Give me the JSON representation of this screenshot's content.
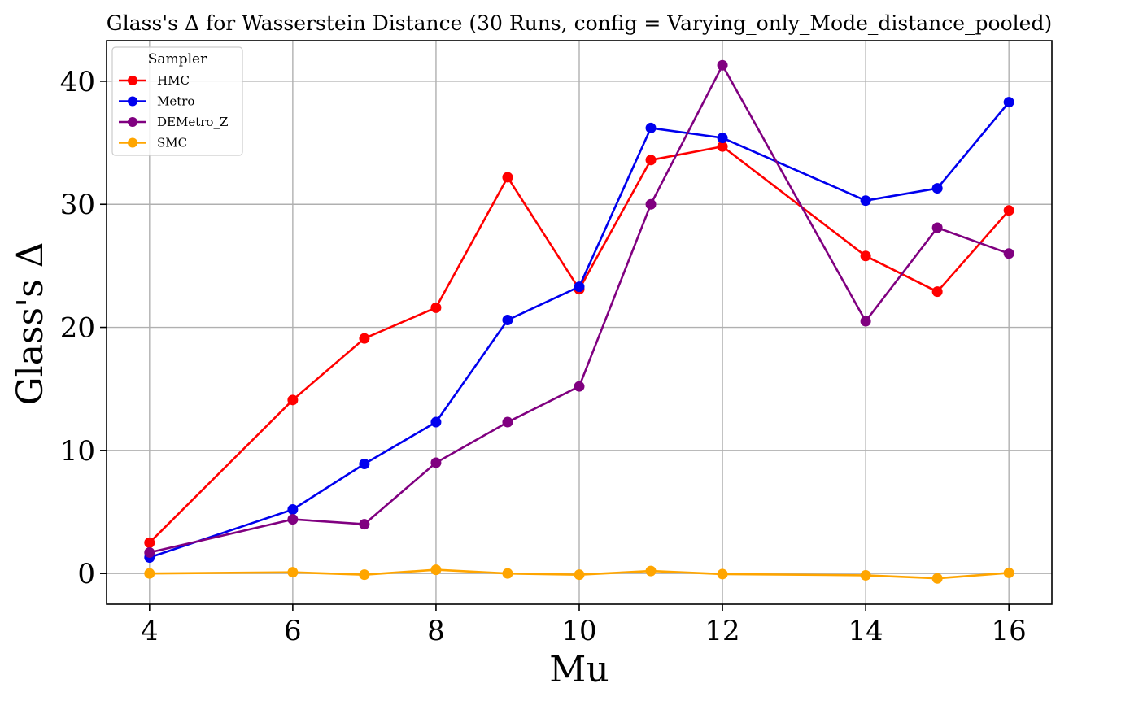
{
  "chart_data": {
    "type": "line",
    "title": "Glass's Δ for Wasserstein Distance (30 Runs, config = Varying_only_Mode_distance_pooled)",
    "xlabel": "Mu",
    "ylabel": "Glass's Δ",
    "xlim": [
      3.4,
      16.6
    ],
    "ylim": [
      -2.5,
      43.3
    ],
    "x_ticks": [
      4,
      6,
      8,
      10,
      12,
      14,
      16
    ],
    "y_ticks": [
      0,
      10,
      20,
      30,
      40
    ],
    "grid": true,
    "legend": {
      "title": "Sampler",
      "position": "top-left"
    },
    "x": [
      4,
      6,
      7,
      8,
      9,
      10,
      11,
      12,
      14,
      15,
      16
    ],
    "series": [
      {
        "name": "HMC",
        "color": "#ff0000",
        "values": [
          2.5,
          14.1,
          19.1,
          21.6,
          32.2,
          23.1,
          33.6,
          34.7,
          25.8,
          22.9,
          29.5
        ]
      },
      {
        "name": "Metro",
        "color": "#0000ee",
        "values": [
          1.3,
          5.2,
          8.9,
          12.3,
          20.6,
          23.3,
          36.2,
          35.4,
          30.3,
          31.3,
          38.3
        ]
      },
      {
        "name": "DEMetro_Z",
        "color": "#800080",
        "values": [
          1.7,
          4.4,
          4.0,
          9.0,
          12.3,
          15.2,
          30.0,
          41.3,
          20.5,
          28.1,
          26.0
        ]
      },
      {
        "name": "SMC",
        "color": "#ffa500",
        "values": [
          0.0,
          0.1,
          -0.1,
          0.3,
          0.0,
          -0.1,
          0.2,
          -0.05,
          -0.15,
          -0.4,
          0.05
        ]
      }
    ]
  }
}
